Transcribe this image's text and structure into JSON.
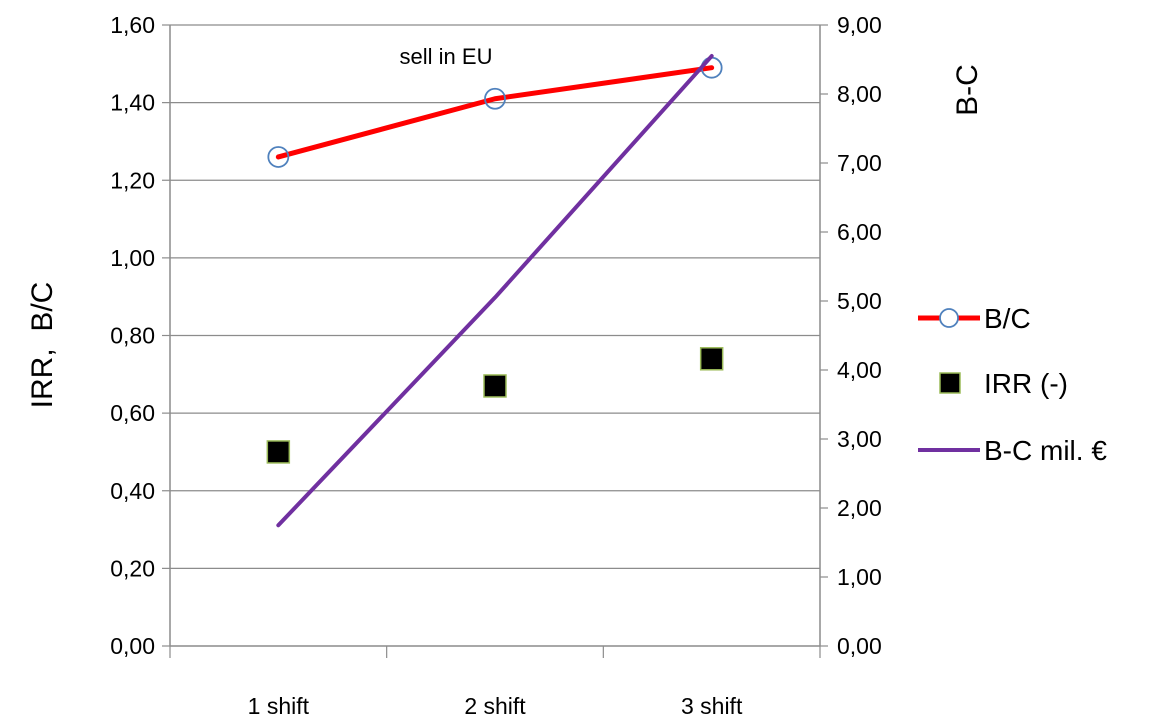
{
  "chart_data": {
    "type": "line",
    "categories": [
      "1 shift",
      "2 shift",
      "3 shift"
    ],
    "annotation": "sell in EU",
    "y_left": {
      "label": "IRR,  B/C",
      "ylim": [
        0,
        1.6
      ],
      "ticks": [
        "0,00",
        "0,20",
        "0,40",
        "0,60",
        "0,80",
        "1,00",
        "1,20",
        "1,40",
        "1,60"
      ]
    },
    "y_right": {
      "label": "B-C",
      "ylim": [
        0,
        9
      ],
      "ticks": [
        "0,00",
        "1,00",
        "2,00",
        "3,00",
        "4,00",
        "5,00",
        "6,00",
        "7,00",
        "8,00",
        "9,00"
      ]
    },
    "grid": true,
    "legend_position": "right",
    "series": [
      {
        "name": "B/C",
        "axis": "left",
        "style": "line-with-circle-markers",
        "color": "#ff0000",
        "marker_color": "#4f81bd",
        "values": [
          1.26,
          1.41,
          1.49
        ]
      },
      {
        "name": "IRR (-)",
        "axis": "left",
        "style": "square-markers",
        "color": "#000000",
        "marker_border": "#9bbb59",
        "values": [
          0.5,
          0.67,
          0.74
        ]
      },
      {
        "name": "B-C mil. €",
        "axis": "right",
        "style": "line",
        "color": "#7030a0",
        "values": [
          1.75,
          5.05,
          8.55
        ]
      }
    ]
  }
}
